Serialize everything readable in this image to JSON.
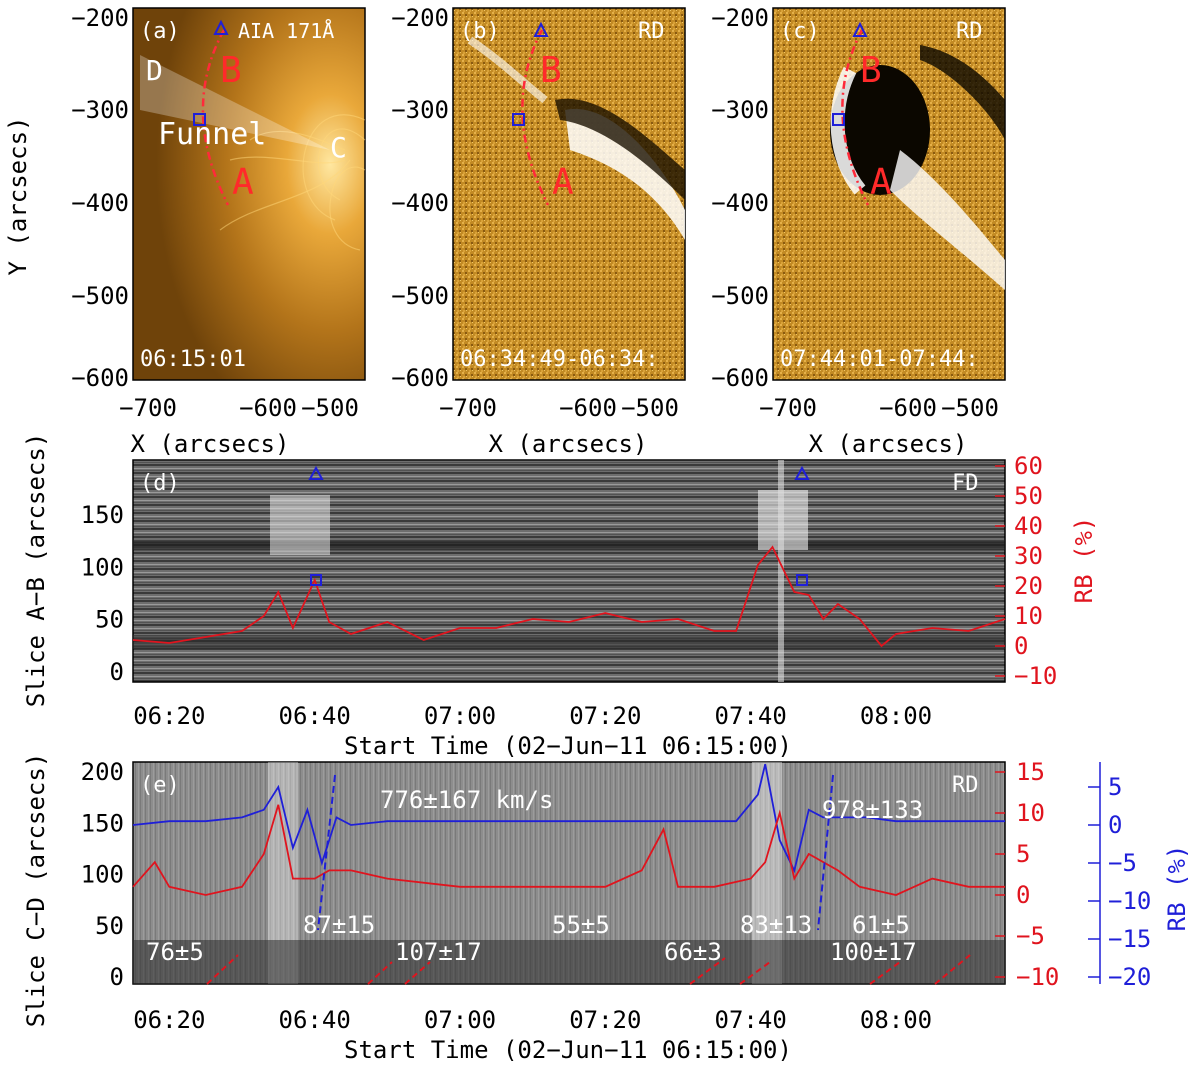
{
  "panels": {
    "a": {
      "tag": "(a)",
      "title": "AIA 171Å",
      "time": "06:15:01",
      "labels": {
        "A": "A",
        "B": "B",
        "C": "C",
        "D": "D",
        "funnel": "Funnel"
      }
    },
    "b": {
      "tag": "(b)",
      "title": "RD",
      "time": "06:34:49-06:34:",
      "labels": {
        "A": "A",
        "B": "B"
      }
    },
    "c": {
      "tag": "(c)",
      "title": "RD",
      "time": "07:44:01-07:44:",
      "labels": {
        "A": "A",
        "B": "B"
      }
    },
    "d": {
      "tag": "(d)",
      "title": "FD"
    },
    "e": {
      "tag": "(e)",
      "title": "RD"
    }
  },
  "axes": {
    "top_y_label": "Y (arcsecs)",
    "top_y_ticks": [
      "−200",
      "−300",
      "−400",
      "−500",
      "−600"
    ],
    "top_x_label": "X (arcsecs)",
    "top_x_ticks": [
      "−700",
      "−600",
      "−500"
    ],
    "d_y_label": "Slice A−B (arcsecs)",
    "d_y_ticks": [
      "0",
      "50",
      "100",
      "150"
    ],
    "d_right_label": "RB (%)",
    "d_right_ticks": [
      "−10",
      "0",
      "10",
      "20",
      "30",
      "40",
      "50",
      "60"
    ],
    "e_y_label": "Slice C−D (arcsecs)",
    "e_y_ticks": [
      "0",
      "50",
      "100",
      "150",
      "200"
    ],
    "e_right_red_ticks": [
      "−10",
      "−5",
      "0",
      "5",
      "10",
      "15"
    ],
    "e_right_blue_label": "RB (%)",
    "e_right_blue_ticks": [
      "−20",
      "−15",
      "−10",
      "−5",
      "0",
      "5"
    ],
    "time_ticks": [
      "06:20",
      "06:40",
      "07:00",
      "07:20",
      "07:40",
      "08:00"
    ],
    "time_label": "Start Time (02−Jun−11 06:15:00)"
  },
  "speeds": {
    "fast1": "776±167 km/s",
    "fast2": "978±133",
    "slow": [
      "76±5",
      "87±15",
      "107±17",
      "55±5",
      "66±3",
      "83±13",
      "61±5",
      "100±17"
    ]
  },
  "chart_data": [
    {
      "type": "line",
      "panel": "d",
      "x_unit": "UT time",
      "xlabel": "Start Time (02-Jun-11 06:15:00)",
      "ylabel_right": "RB (%)",
      "ylim_right": [
        -10,
        60
      ],
      "series": [
        {
          "color": "#e0141e",
          "x": [
            "06:15",
            "06:20",
            "06:25",
            "06:30",
            "06:33",
            "06:35",
            "06:37",
            "06:40",
            "06:42",
            "06:45",
            "06:50",
            "06:55",
            "07:00",
            "07:05",
            "07:10",
            "07:15",
            "07:20",
            "07:25",
            "07:30",
            "07:35",
            "07:38",
            "07:41",
            "07:43",
            "07:44",
            "07:46",
            "07:48",
            "07:50",
            "07:52",
            "07:55",
            "07:58",
            "08:00",
            "08:05",
            "08:10",
            "08:15"
          ],
          "values": [
            2,
            1,
            3,
            5,
            10,
            18,
            6,
            22,
            8,
            4,
            8,
            2,
            6,
            6,
            9,
            8,
            11,
            8,
            9,
            5,
            5,
            27,
            33,
            28,
            18,
            17,
            9,
            14,
            9,
            0,
            4,
            6,
            5,
            9
          ]
        }
      ]
    },
    {
      "type": "line",
      "panel": "e",
      "x_unit": "UT time",
      "xlabel": "Start Time (02-Jun-11 06:15:00)",
      "ylim_left": [
        0,
        200
      ],
      "ylim_right_red": [
        -10,
        15
      ],
      "ylim_right_blue": [
        -20,
        7
      ],
      "series": [
        {
          "color": "#1f1fd8",
          "axis": "right_blue",
          "x": [
            "06:15",
            "06:20",
            "06:25",
            "06:30",
            "06:33",
            "06:35",
            "06:37",
            "06:39",
            "06:41",
            "06:43",
            "06:45",
            "06:50",
            "07:00",
            "07:10",
            "07:20",
            "07:30",
            "07:38",
            "07:41",
            "07:42",
            "07:44",
            "07:46",
            "07:48",
            "07:50",
            "07:53",
            "07:56",
            "08:00",
            "08:05",
            "08:10",
            "08:15"
          ],
          "values": [
            0,
            0.5,
            0.5,
            1,
            2,
            5,
            -3,
            2,
            -5,
            1,
            0,
            0.5,
            0.5,
            0.5,
            0.5,
            0.5,
            0.5,
            4,
            8,
            -2,
            -6,
            2,
            1,
            1,
            1,
            0.5,
            0.5,
            0.5,
            0.5
          ]
        },
        {
          "color": "#e0141e",
          "axis": "right_red",
          "x": [
            "06:15",
            "06:18",
            "06:20",
            "06:25",
            "06:30",
            "06:33",
            "06:35",
            "06:37",
            "06:40",
            "06:42",
            "06:45",
            "06:50",
            "07:00",
            "07:10",
            "07:20",
            "07:25",
            "07:28",
            "07:30",
            "07:35",
            "07:40",
            "07:42",
            "07:44",
            "07:46",
            "07:48",
            "07:52",
            "07:55",
            "08:00",
            "08:05",
            "08:10",
            "08:15"
          ],
          "values": [
            1,
            4,
            1,
            0,
            1,
            5,
            11,
            2,
            2,
            3,
            3,
            2,
            1,
            1,
            1,
            3,
            8,
            1,
            1,
            2,
            4,
            10,
            2,
            5,
            3,
            1,
            0,
            2,
            1,
            1
          ]
        }
      ]
    }
  ],
  "colors": {
    "red": "#e0141e",
    "blue": "#1f1fd8",
    "gold": "#c58a1c"
  }
}
